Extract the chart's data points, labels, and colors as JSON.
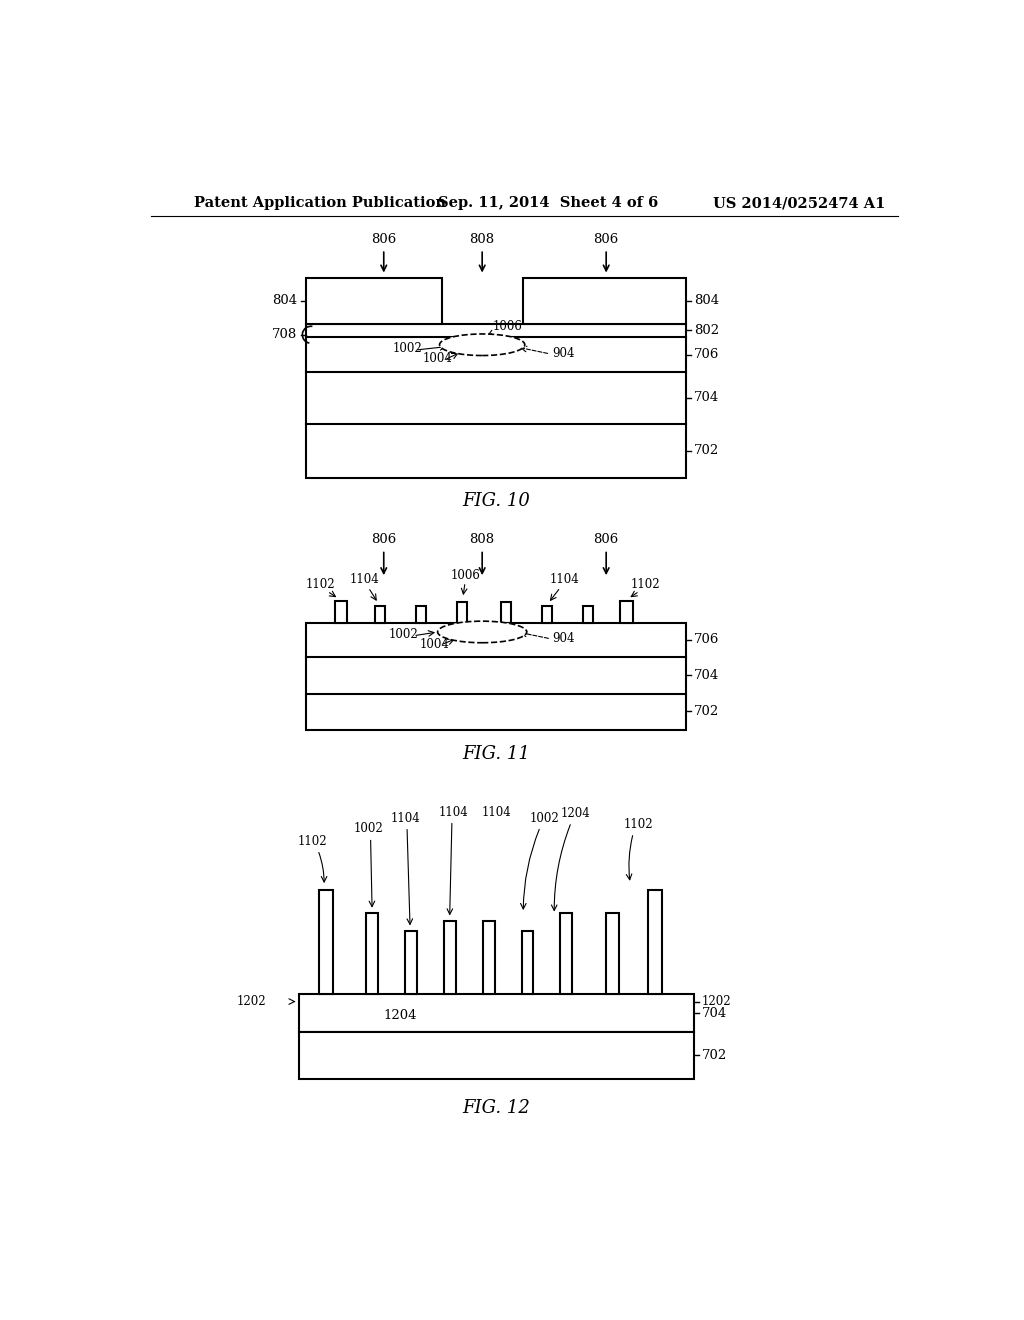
{
  "bg_color": "#ffffff",
  "header_text": "Patent Application Publication",
  "header_date": "Sep. 11, 2014  Sheet 4 of 6",
  "header_patent": "US 2014/0252474 A1",
  "fig10_title": "FIG. 10",
  "fig11_title": "FIG. 11",
  "fig12_title": "FIG. 12",
  "black": "#000000"
}
